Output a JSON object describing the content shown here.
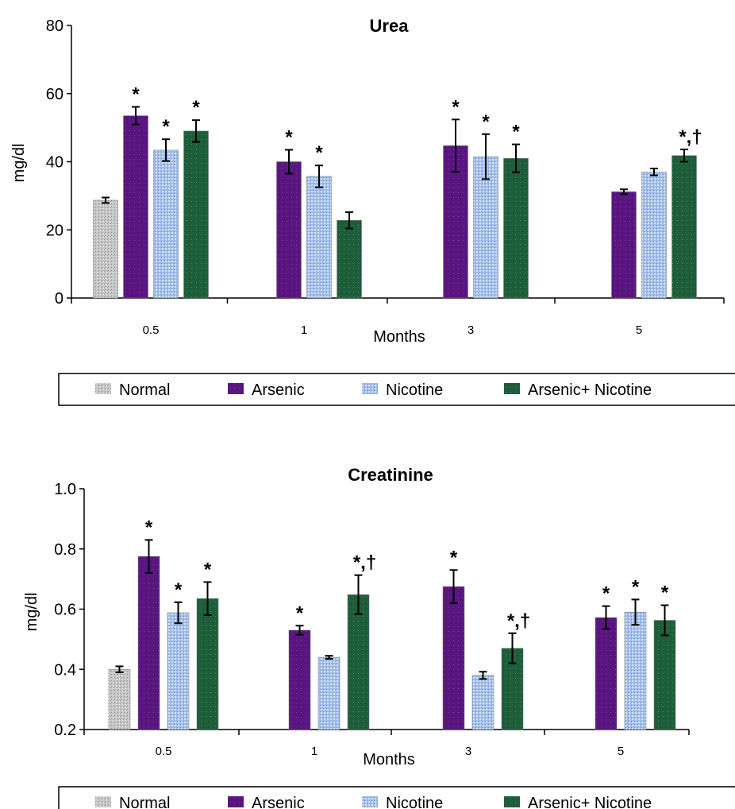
{
  "chart_data": [
    {
      "type": "bar",
      "title": "Urea",
      "xlabel": "Months",
      "ylabel": "mg/dl",
      "ylim": [
        0,
        80
      ],
      "yticks": [
        "0",
        "20",
        "40",
        "60",
        "80"
      ],
      "categories": [
        "0.5",
        "1",
        "3",
        "5"
      ],
      "series": [
        {
          "name": "Normal",
          "values": [
            28.7,
            null,
            null,
            null
          ],
          "errors": [
            0.8,
            null,
            null,
            null
          ],
          "markers": [
            "",
            "",
            "",
            ""
          ]
        },
        {
          "name": "Arsenic",
          "values": [
            53.5,
            40,
            44.7,
            31.2
          ],
          "errors": [
            2.6,
            3.5,
            7.7,
            0.7
          ],
          "markers": [
            "*",
            "*",
            "*",
            ""
          ]
        },
        {
          "name": "Nicotine",
          "values": [
            43.4,
            35.7,
            41.5,
            37
          ],
          "errors": [
            3.2,
            3.2,
            6.6,
            1
          ],
          "markers": [
            "*",
            "*",
            "*",
            ""
          ]
        },
        {
          "name": "Arsenic+ Nicotine",
          "values": [
            49,
            22.8,
            41,
            41.8
          ],
          "errors": [
            3.2,
            2.4,
            4.1,
            1.8
          ],
          "markers": [
            "*",
            "",
            "*",
            "*,†"
          ]
        }
      ],
      "legend": [
        "Normal",
        "Arsenic",
        "Nicotine",
        "Arsenic+ Nicotine"
      ]
    },
    {
      "type": "bar",
      "title": "Creatinine",
      "xlabel": "Months",
      "ylabel": "mg/dl",
      "ylim": [
        0.2,
        1.0
      ],
      "yticks": [
        "0.2",
        "0.4",
        "0.6",
        "0.8",
        "1.0"
      ],
      "categories": [
        "0.5",
        "1",
        "3",
        "5"
      ],
      "series": [
        {
          "name": "Normal",
          "values": [
            0.4,
            null,
            null,
            null
          ],
          "errors": [
            0.01,
            null,
            null,
            null
          ],
          "markers": [
            "",
            "",
            "",
            ""
          ]
        },
        {
          "name": "Arsenic",
          "values": [
            0.775,
            0.53,
            0.675,
            0.572
          ],
          "errors": [
            0.055,
            0.015,
            0.055,
            0.038
          ],
          "markers": [
            "*",
            "*",
            "*",
            "*"
          ]
        },
        {
          "name": "Nicotine",
          "values": [
            0.588,
            0.44,
            0.38,
            0.59
          ],
          "errors": [
            0.035,
            0.005,
            0.012,
            0.042
          ],
          "markers": [
            "*",
            "",
            "",
            "*"
          ]
        },
        {
          "name": "Arsenic+ Nicotine",
          "values": [
            0.635,
            0.648,
            0.47,
            0.563
          ],
          "errors": [
            0.055,
            0.065,
            0.05,
            0.05
          ],
          "markers": [
            "*",
            "*,†",
            "*,†",
            "*"
          ]
        }
      ],
      "legend": [
        "Normal",
        "Arsenic",
        "Nicotine",
        "Arsenic+ Nicotine"
      ]
    }
  ],
  "colors": {
    "Normal": "#c4c4c4",
    "Arsenic": "#5a1680",
    "Nicotine": "#a8c2ea",
    "Arsenic+ Nicotine": "#1f5e3a"
  }
}
